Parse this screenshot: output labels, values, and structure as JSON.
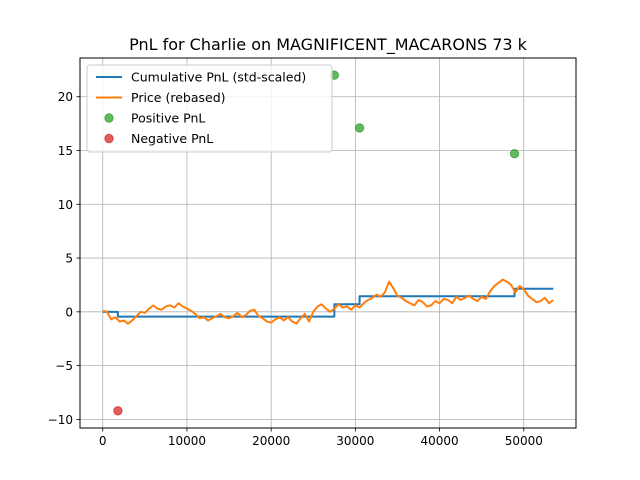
{
  "chart_data": {
    "type": "line",
    "title": "PnL for Charlie on MAGNIFICENT_MACARONS 73 k",
    "xlabel": "",
    "ylabel": "",
    "xlim": [
      -2700,
      56200
    ],
    "ylim": [
      -10.8,
      23.6
    ],
    "xticks": [
      0,
      10000,
      20000,
      30000,
      40000,
      50000
    ],
    "yticks": [
      -10,
      -5,
      0,
      5,
      10,
      15,
      20
    ],
    "grid": true,
    "legend_position": "top-left",
    "colors": {
      "cumulative": "#1f77b4",
      "price": "#ff7f0e",
      "positive": "#2ca02c",
      "negative": "#d62728"
    },
    "legend": [
      {
        "label": "Cumulative PnL (std-scaled)",
        "kind": "line",
        "series": "cumulative"
      },
      {
        "label": "Price (rebased)",
        "kind": "line",
        "series": "price"
      },
      {
        "label": "Positive PnL",
        "kind": "marker",
        "series": "positive"
      },
      {
        "label": "Negative PnL",
        "kind": "marker",
        "series": "negative"
      }
    ],
    "series": [
      {
        "name": "Cumulative PnL (std-scaled)",
        "key": "cumulative",
        "style": "step",
        "x": [
          0,
          1800,
          1800,
          27500,
          27500,
          30500,
          30500,
          48900,
          48900,
          53500
        ],
        "y": [
          0,
          0,
          -0.45,
          -0.45,
          0.7,
          0.7,
          1.45,
          1.45,
          2.15,
          2.15
        ]
      },
      {
        "name": "Price (rebased)",
        "key": "price",
        "style": "line",
        "x": [
          0,
          500,
          1000,
          1500,
          2000,
          2500,
          3000,
          3500,
          4000,
          4500,
          5000,
          5500,
          6000,
          6500,
          7000,
          7500,
          8000,
          8500,
          9000,
          9500,
          10000,
          10500,
          11000,
          11500,
          12000,
          12500,
          13000,
          13500,
          14000,
          14500,
          15000,
          15500,
          16000,
          16500,
          17000,
          17500,
          18000,
          18500,
          19000,
          19500,
          20000,
          20500,
          21000,
          21500,
          22000,
          22500,
          23000,
          23500,
          24000,
          24500,
          25000,
          25500,
          26000,
          26500,
          27000,
          27500,
          28000,
          28500,
          29000,
          29500,
          30000,
          30500,
          31000,
          31500,
          32000,
          32500,
          33000,
          33500,
          34000,
          34500,
          35000,
          35500,
          36000,
          36500,
          37000,
          37500,
          38000,
          38500,
          39000,
          39500,
          40000,
          40500,
          41000,
          41500,
          42000,
          42500,
          43000,
          43500,
          44000,
          44500,
          45000,
          45500,
          46000,
          46500,
          47000,
          47500,
          48000,
          48500,
          49000,
          49500,
          50000,
          50500,
          51000,
          51500,
          52000,
          52500,
          53000,
          53500
        ],
        "y": [
          0.1,
          0.0,
          -0.7,
          -0.5,
          -0.9,
          -0.8,
          -1.1,
          -0.8,
          -0.4,
          0.0,
          -0.1,
          0.3,
          0.6,
          0.3,
          0.2,
          0.5,
          0.6,
          0.4,
          0.8,
          0.5,
          0.3,
          0.1,
          -0.2,
          -0.6,
          -0.5,
          -0.8,
          -0.6,
          -0.4,
          -0.2,
          -0.5,
          -0.6,
          -0.4,
          -0.1,
          -0.5,
          -0.3,
          0.1,
          0.2,
          -0.4,
          -0.6,
          -0.9,
          -1.0,
          -0.7,
          -0.5,
          -0.8,
          -0.5,
          -0.9,
          -1.1,
          -0.6,
          -0.2,
          -0.9,
          0.0,
          0.5,
          0.7,
          0.3,
          0.0,
          0.3,
          0.7,
          0.4,
          0.5,
          0.2,
          0.6,
          0.4,
          0.8,
          1.1,
          1.3,
          1.6,
          1.4,
          1.8,
          2.8,
          2.2,
          1.5,
          1.3,
          1.0,
          0.8,
          0.6,
          1.1,
          0.9,
          0.5,
          0.6,
          1.0,
          0.8,
          1.2,
          1.1,
          0.8,
          1.4,
          1.1,
          1.3,
          1.5,
          1.2,
          1.0,
          1.4,
          1.2,
          1.9,
          2.4,
          2.7,
          3.0,
          2.8,
          2.5,
          1.8,
          2.4,
          2.1,
          1.5,
          1.2,
          0.9,
          1.0,
          1.3,
          0.8,
          1.1
        ]
      },
      {
        "name": "Positive PnL",
        "key": "positive",
        "style": "scatter",
        "x": [
          27500,
          30500,
          48900
        ],
        "y": [
          22.0,
          17.1,
          14.7
        ]
      },
      {
        "name": "Negative PnL",
        "key": "negative",
        "style": "scatter",
        "x": [
          1800
        ],
        "y": [
          -9.2
        ]
      }
    ]
  }
}
